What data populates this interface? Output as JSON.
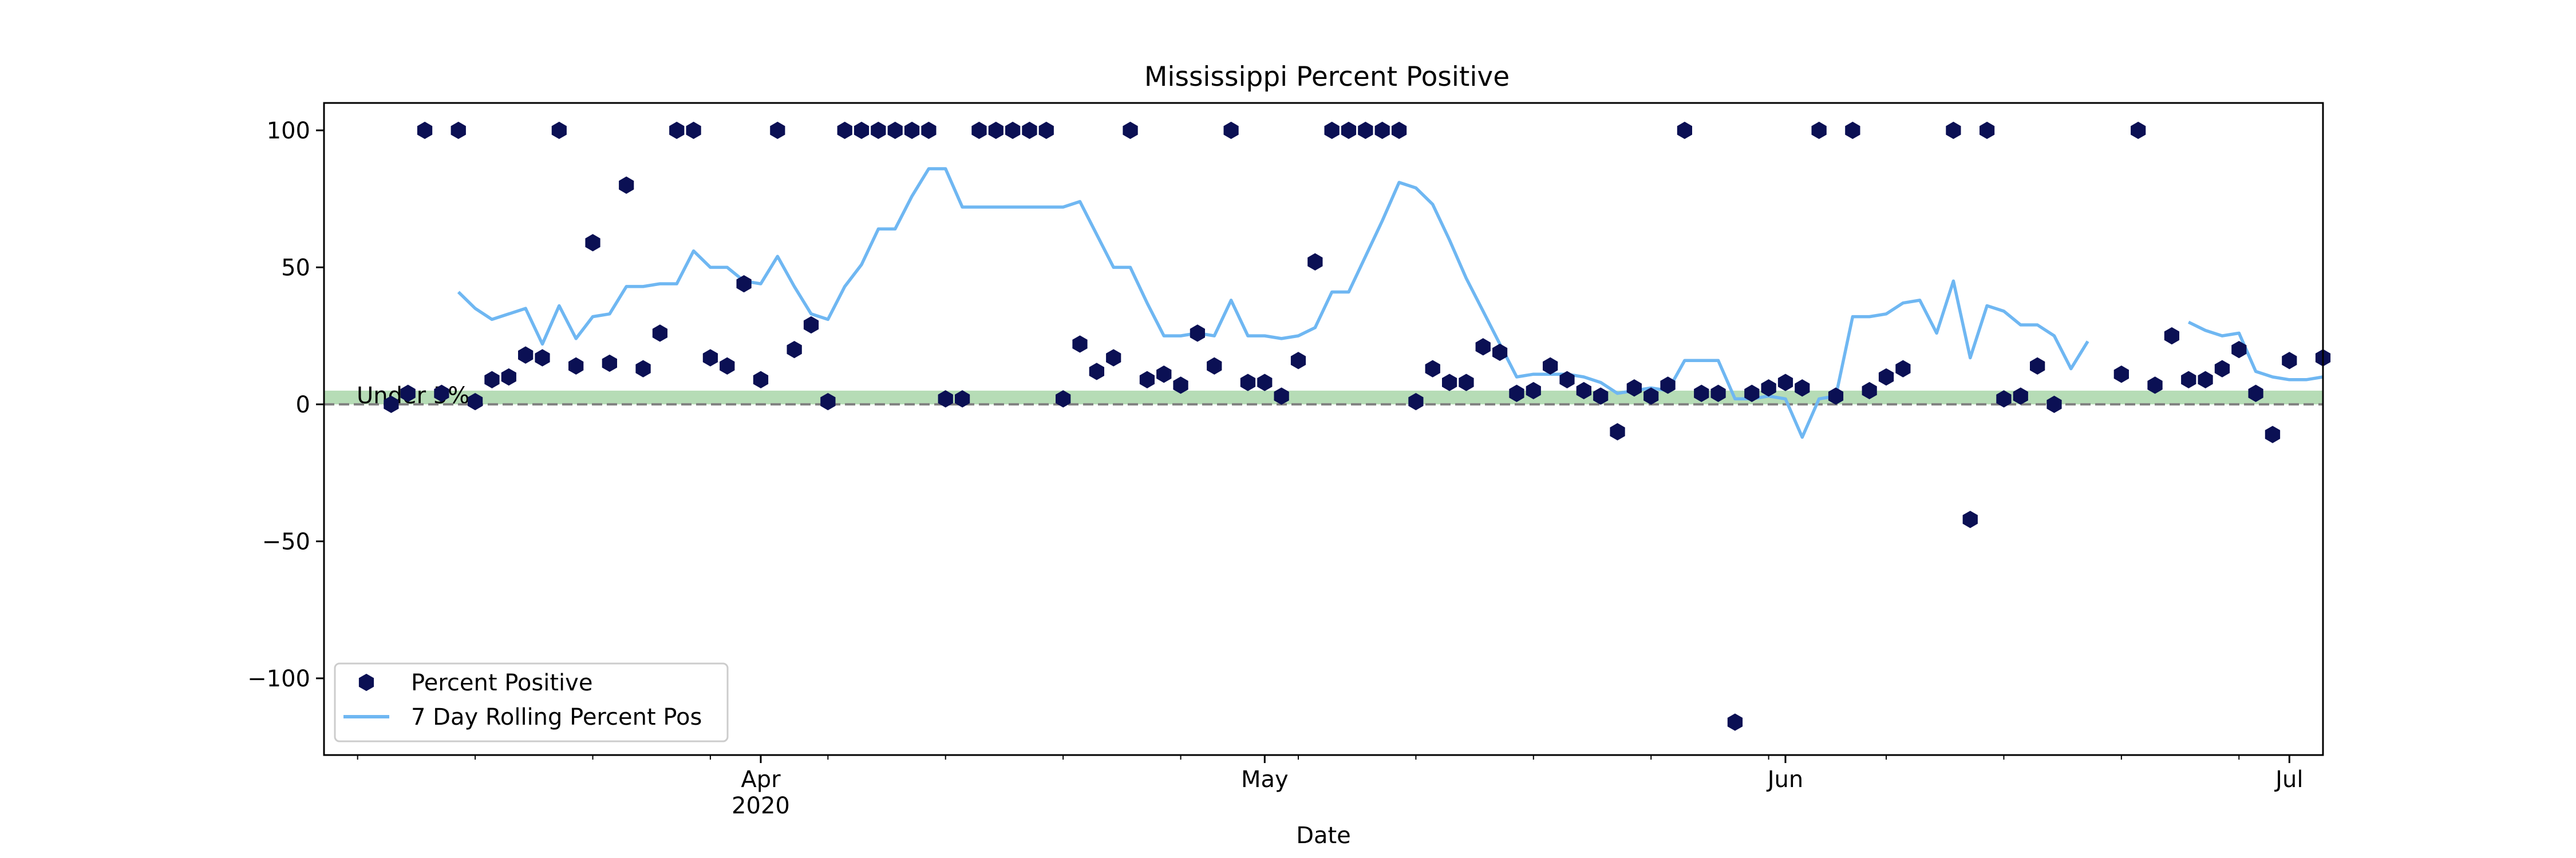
{
  "chart_data": {
    "type": "scatter",
    "title": "Mississippi Percent Positive",
    "xlabel": "Date",
    "ylabel": "",
    "xlim": [
      "2020-03-06",
      "2020-07-03"
    ],
    "ylim": [
      -128,
      110
    ],
    "yticks": [
      100,
      50,
      0,
      -50,
      -100
    ],
    "ytick_labels": [
      "100",
      "50",
      "0",
      "−50",
      "−100"
    ],
    "xticks_major": [
      {
        "date": "2020-04-01",
        "label": "Apr",
        "sublabel": "2020"
      },
      {
        "date": "2020-05-01",
        "label": "May",
        "sublabel": ""
      },
      {
        "date": "2020-06-01",
        "label": "Jun",
        "sublabel": ""
      },
      {
        "date": "2020-07-01",
        "label": "Jul",
        "sublabel": ""
      }
    ],
    "band": {
      "label": "Under 5%",
      "from": 0,
      "to": 5,
      "color": "#2e9c2e"
    },
    "baseline": 0,
    "grid": false,
    "legend_position": "lower-left",
    "colors": {
      "scatter": "#0b1054",
      "line": "#6fb7f2",
      "band": "#2e9c2e"
    },
    "series": [
      {
        "name": "Percent Positive",
        "kind": "scatter",
        "marker": "hexagon",
        "points": [
          {
            "x": "2020-03-10",
            "y": 0
          },
          {
            "x": "2020-03-11",
            "y": 4
          },
          {
            "x": "2020-03-12",
            "y": 100
          },
          {
            "x": "2020-03-13",
            "y": 4
          },
          {
            "x": "2020-03-14",
            "y": 100
          },
          {
            "x": "2020-03-15",
            "y": 1
          },
          {
            "x": "2020-03-16",
            "y": 9
          },
          {
            "x": "2020-03-17",
            "y": 10
          },
          {
            "x": "2020-03-18",
            "y": 18
          },
          {
            "x": "2020-03-19",
            "y": 17
          },
          {
            "x": "2020-03-20",
            "y": 100
          },
          {
            "x": "2020-03-21",
            "y": 14
          },
          {
            "x": "2020-03-22",
            "y": 59
          },
          {
            "x": "2020-03-23",
            "y": 15
          },
          {
            "x": "2020-03-24",
            "y": 80
          },
          {
            "x": "2020-03-25",
            "y": 13
          },
          {
            "x": "2020-03-26",
            "y": 26
          },
          {
            "x": "2020-03-27",
            "y": 100
          },
          {
            "x": "2020-03-28",
            "y": 100
          },
          {
            "x": "2020-03-29",
            "y": 17
          },
          {
            "x": "2020-03-30",
            "y": 14
          },
          {
            "x": "2020-03-31",
            "y": 44
          },
          {
            "x": "2020-04-01",
            "y": 9
          },
          {
            "x": "2020-04-02",
            "y": 100
          },
          {
            "x": "2020-04-03",
            "y": 20
          },
          {
            "x": "2020-04-04",
            "y": 29
          },
          {
            "x": "2020-04-05",
            "y": 1
          },
          {
            "x": "2020-04-06",
            "y": 100
          },
          {
            "x": "2020-04-07",
            "y": 100
          },
          {
            "x": "2020-04-08",
            "y": 100
          },
          {
            "x": "2020-04-09",
            "y": 100
          },
          {
            "x": "2020-04-10",
            "y": 100
          },
          {
            "x": "2020-04-11",
            "y": 100
          },
          {
            "x": "2020-04-12",
            "y": 2
          },
          {
            "x": "2020-04-13",
            "y": 2
          },
          {
            "x": "2020-04-14",
            "y": 100
          },
          {
            "x": "2020-04-15",
            "y": 100
          },
          {
            "x": "2020-04-16",
            "y": 100
          },
          {
            "x": "2020-04-17",
            "y": 100
          },
          {
            "x": "2020-04-18",
            "y": 100
          },
          {
            "x": "2020-04-19",
            "y": 2
          },
          {
            "x": "2020-04-20",
            "y": 22
          },
          {
            "x": "2020-04-21",
            "y": 12
          },
          {
            "x": "2020-04-22",
            "y": 17
          },
          {
            "x": "2020-04-23",
            "y": 100
          },
          {
            "x": "2020-04-24",
            "y": 9
          },
          {
            "x": "2020-04-25",
            "y": 11
          },
          {
            "x": "2020-04-26",
            "y": 7
          },
          {
            "x": "2020-04-27",
            "y": 26
          },
          {
            "x": "2020-04-28",
            "y": 14
          },
          {
            "x": "2020-04-29",
            "y": 100
          },
          {
            "x": "2020-04-30",
            "y": 8
          },
          {
            "x": "2020-05-01",
            "y": 8
          },
          {
            "x": "2020-05-02",
            "y": 3
          },
          {
            "x": "2020-05-03",
            "y": 16
          },
          {
            "x": "2020-05-04",
            "y": 52
          },
          {
            "x": "2020-05-05",
            "y": 100
          },
          {
            "x": "2020-05-06",
            "y": 100
          },
          {
            "x": "2020-05-07",
            "y": 100
          },
          {
            "x": "2020-05-08",
            "y": 100
          },
          {
            "x": "2020-05-09",
            "y": 100
          },
          {
            "x": "2020-05-10",
            "y": 1
          },
          {
            "x": "2020-05-11",
            "y": 13
          },
          {
            "x": "2020-05-12",
            "y": 8
          },
          {
            "x": "2020-05-13",
            "y": 8
          },
          {
            "x": "2020-05-14",
            "y": 21
          },
          {
            "x": "2020-05-15",
            "y": 19
          },
          {
            "x": "2020-05-16",
            "y": 4
          },
          {
            "x": "2020-05-17",
            "y": 5
          },
          {
            "x": "2020-05-18",
            "y": 14
          },
          {
            "x": "2020-05-19",
            "y": 9
          },
          {
            "x": "2020-05-20",
            "y": 5
          },
          {
            "x": "2020-05-21",
            "y": 3
          },
          {
            "x": "2020-05-22",
            "y": -10
          },
          {
            "x": "2020-05-23",
            "y": 6
          },
          {
            "x": "2020-05-24",
            "y": 3
          },
          {
            "x": "2020-05-25",
            "y": 7
          },
          {
            "x": "2020-05-26",
            "y": 100
          },
          {
            "x": "2020-05-27",
            "y": 4
          },
          {
            "x": "2020-05-28",
            "y": 4
          },
          {
            "x": "2020-05-29",
            "y": -116
          },
          {
            "x": "2020-05-30",
            "y": 4
          },
          {
            "x": "2020-05-31",
            "y": 6
          },
          {
            "x": "2020-06-01",
            "y": 8
          },
          {
            "x": "2020-06-02",
            "y": 6
          },
          {
            "x": "2020-06-03",
            "y": 100
          },
          {
            "x": "2020-06-04",
            "y": 3
          },
          {
            "x": "2020-06-05",
            "y": 100
          },
          {
            "x": "2020-06-06",
            "y": 5
          },
          {
            "x": "2020-06-07",
            "y": 10
          },
          {
            "x": "2020-06-08",
            "y": 13
          },
          {
            "x": "2020-06-11",
            "y": 100
          },
          {
            "x": "2020-06-12",
            "y": -42
          },
          {
            "x": "2020-06-13",
            "y": 100
          },
          {
            "x": "2020-06-14",
            "y": 2
          },
          {
            "x": "2020-06-15",
            "y": 3
          },
          {
            "x": "2020-06-16",
            "y": 14
          },
          {
            "x": "2020-06-17",
            "y": 0
          },
          {
            "x": "2020-06-21",
            "y": 11
          },
          {
            "x": "2020-06-22",
            "y": 100
          },
          {
            "x": "2020-06-23",
            "y": 7
          },
          {
            "x": "2020-06-24",
            "y": 25
          },
          {
            "x": "2020-06-25",
            "y": 9
          },
          {
            "x": "2020-06-26",
            "y": 9
          },
          {
            "x": "2020-06-27",
            "y": 13
          },
          {
            "x": "2020-06-28",
            "y": 20
          },
          {
            "x": "2020-06-29",
            "y": 4
          },
          {
            "x": "2020-06-30",
            "y": -11
          },
          {
            "x": "2020-07-01",
            "y": 16
          },
          {
            "x": "2020-07-03",
            "y": 17
          }
        ]
      },
      {
        "name": "7 Day Rolling Percent Pos",
        "kind": "line",
        "segments": [
          [
            {
              "x": "2020-03-14",
              "y": 41
            },
            {
              "x": "2020-03-15",
              "y": 35
            },
            {
              "x": "2020-03-16",
              "y": 31
            },
            {
              "x": "2020-03-17",
              "y": 33
            },
            {
              "x": "2020-03-18",
              "y": 35
            },
            {
              "x": "2020-03-19",
              "y": 22
            },
            {
              "x": "2020-03-20",
              "y": 36
            },
            {
              "x": "2020-03-21",
              "y": 24
            },
            {
              "x": "2020-03-22",
              "y": 32
            },
            {
              "x": "2020-03-23",
              "y": 33
            },
            {
              "x": "2020-03-24",
              "y": 43
            },
            {
              "x": "2020-03-25",
              "y": 43
            },
            {
              "x": "2020-03-26",
              "y": 44
            },
            {
              "x": "2020-03-27",
              "y": 44
            },
            {
              "x": "2020-03-28",
              "y": 56
            },
            {
              "x": "2020-03-29",
              "y": 50
            },
            {
              "x": "2020-03-30",
              "y": 50
            },
            {
              "x": "2020-03-31",
              "y": 45
            },
            {
              "x": "2020-04-01",
              "y": 44
            },
            {
              "x": "2020-04-02",
              "y": 54
            },
            {
              "x": "2020-04-03",
              "y": 43
            },
            {
              "x": "2020-04-04",
              "y": 33
            },
            {
              "x": "2020-04-05",
              "y": 31
            },
            {
              "x": "2020-04-06",
              "y": 43
            },
            {
              "x": "2020-04-07",
              "y": 51
            },
            {
              "x": "2020-04-08",
              "y": 64
            },
            {
              "x": "2020-04-09",
              "y": 64
            },
            {
              "x": "2020-04-10",
              "y": 76
            },
            {
              "x": "2020-04-11",
              "y": 86
            },
            {
              "x": "2020-04-12",
              "y": 86
            },
            {
              "x": "2020-04-13",
              "y": 72
            },
            {
              "x": "2020-04-14",
              "y": 72
            },
            {
              "x": "2020-04-15",
              "y": 72
            },
            {
              "x": "2020-04-16",
              "y": 72
            },
            {
              "x": "2020-04-17",
              "y": 72
            },
            {
              "x": "2020-04-18",
              "y": 72
            },
            {
              "x": "2020-04-19",
              "y": 72
            },
            {
              "x": "2020-04-20",
              "y": 74
            },
            {
              "x": "2020-04-21",
              "y": 62
            },
            {
              "x": "2020-04-22",
              "y": 50
            },
            {
              "x": "2020-04-23",
              "y": 50
            },
            {
              "x": "2020-04-24",
              "y": 37
            },
            {
              "x": "2020-04-25",
              "y": 25
            },
            {
              "x": "2020-04-26",
              "y": 25
            },
            {
              "x": "2020-04-27",
              "y": 26
            },
            {
              "x": "2020-04-28",
              "y": 25
            },
            {
              "x": "2020-04-29",
              "y": 38
            },
            {
              "x": "2020-04-30",
              "y": 25
            },
            {
              "x": "2020-05-01",
              "y": 25
            },
            {
              "x": "2020-05-02",
              "y": 24
            },
            {
              "x": "2020-05-03",
              "y": 25
            },
            {
              "x": "2020-05-04",
              "y": 28
            },
            {
              "x": "2020-05-05",
              "y": 41
            },
            {
              "x": "2020-05-06",
              "y": 41
            },
            {
              "x": "2020-05-07",
              "y": 54
            },
            {
              "x": "2020-05-08",
              "y": 67
            },
            {
              "x": "2020-05-09",
              "y": 81
            },
            {
              "x": "2020-05-10",
              "y": 79
            },
            {
              "x": "2020-05-11",
              "y": 73
            },
            {
              "x": "2020-05-12",
              "y": 60
            },
            {
              "x": "2020-05-13",
              "y": 46
            },
            {
              "x": "2020-05-14",
              "y": 34
            },
            {
              "x": "2020-05-15",
              "y": 22
            },
            {
              "x": "2020-05-16",
              "y": 10
            },
            {
              "x": "2020-05-17",
              "y": 11
            },
            {
              "x": "2020-05-18",
              "y": 11
            },
            {
              "x": "2020-05-19",
              "y": 11
            },
            {
              "x": "2020-05-20",
              "y": 10
            },
            {
              "x": "2020-05-21",
              "y": 8
            },
            {
              "x": "2020-05-22",
              "y": 4
            },
            {
              "x": "2020-05-23",
              "y": 5
            },
            {
              "x": "2020-05-24",
              "y": 6
            },
            {
              "x": "2020-05-25",
              "y": 5
            },
            {
              "x": "2020-05-26",
              "y": 16
            },
            {
              "x": "2020-05-27",
              "y": 16
            },
            {
              "x": "2020-05-28",
              "y": 16
            },
            {
              "x": "2020-05-29",
              "y": 2
            },
            {
              "x": "2020-05-30",
              "y": 2
            },
            {
              "x": "2020-05-31",
              "y": 3
            },
            {
              "x": "2020-06-01",
              "y": 2
            },
            {
              "x": "2020-06-02",
              "y": -12
            },
            {
              "x": "2020-06-03",
              "y": 2
            },
            {
              "x": "2020-06-04",
              "y": 3
            },
            {
              "x": "2020-06-05",
              "y": 32
            },
            {
              "x": "2020-06-06",
              "y": 32
            },
            {
              "x": "2020-06-07",
              "y": 33
            },
            {
              "x": "2020-06-08",
              "y": 37
            },
            {
              "x": "2020-06-09",
              "y": 38
            },
            {
              "x": "2020-06-10",
              "y": 26
            },
            {
              "x": "2020-06-11",
              "y": 45
            },
            {
              "x": "2020-06-12",
              "y": 17
            },
            {
              "x": "2020-06-13",
              "y": 36
            },
            {
              "x": "2020-06-14",
              "y": 34
            },
            {
              "x": "2020-06-15",
              "y": 29
            },
            {
              "x": "2020-06-16",
              "y": 29
            },
            {
              "x": "2020-06-17",
              "y": 25
            },
            {
              "x": "2020-06-18",
              "y": 13
            },
            {
              "x": "2020-06-19",
              "y": 23
            }
          ],
          [
            {
              "x": "2020-06-25",
              "y": 30
            },
            {
              "x": "2020-06-26",
              "y": 27
            },
            {
              "x": "2020-06-27",
              "y": 25
            },
            {
              "x": "2020-06-28",
              "y": 26
            },
            {
              "x": "2020-06-29",
              "y": 12
            },
            {
              "x": "2020-06-30",
              "y": 10
            },
            {
              "x": "2020-07-01",
              "y": 9
            },
            {
              "x": "2020-07-02",
              "y": 9
            },
            {
              "x": "2020-07-03",
              "y": 10
            }
          ]
        ]
      }
    ]
  }
}
